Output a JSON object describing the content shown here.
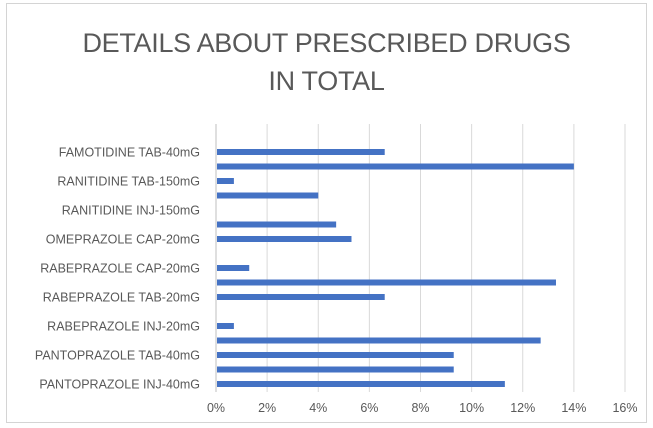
{
  "chart_data": {
    "type": "bar",
    "orientation": "horizontal",
    "title": [
      "DETAILS ABOUT PRESCRIBED DRUGS",
      "IN TOTAL"
    ],
    "xlabel": "",
    "ylabel": "",
    "xlim": [
      0,
      16
    ],
    "x_ticks": [
      "0%",
      "2%",
      "4%",
      "6%",
      "8%",
      "10%",
      "12%",
      "14%",
      "16%"
    ],
    "grid": "vertical",
    "legend": "none",
    "bar_color": "#4472c4",
    "categories": [
      {
        "label": "FAMOTIDINE TAB-40mG",
        "value": 6.6
      },
      {
        "label": "",
        "value": 14.0
      },
      {
        "label": "RANITIDINE TAB-150mG",
        "value": 0.7
      },
      {
        "label": "",
        "value": 4.0
      },
      {
        "label": "RANITIDINE INJ-150mG",
        "value": 0
      },
      {
        "label": "",
        "value": 4.7
      },
      {
        "label": "OMEPRAZOLE CAP-20mG",
        "value": 5.3
      },
      {
        "label": "",
        "value": 0
      },
      {
        "label": "RABEPRAZOLE CAP-20mG",
        "value": 1.3
      },
      {
        "label": "",
        "value": 13.3
      },
      {
        "label": "RABEPRAZOLE TAB-20mG",
        "value": 6.6
      },
      {
        "label": "",
        "value": 0
      },
      {
        "label": "RABEPRAZOLE INJ-20mG",
        "value": 0.7
      },
      {
        "label": "",
        "value": 12.7
      },
      {
        "label": "PANTOPRAZOLE TAB-40mG",
        "value": 9.3
      },
      {
        "label": "",
        "value": 9.3
      },
      {
        "label": "PANTOPRAZOLE INJ-40mG",
        "value": 11.3
      }
    ]
  }
}
